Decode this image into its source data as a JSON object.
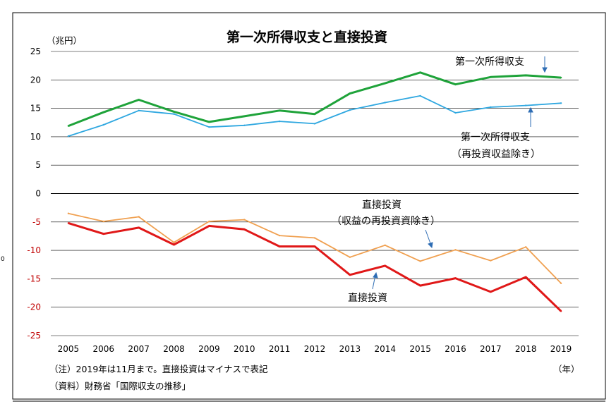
{
  "chart_data": {
    "type": "line",
    "title": "第一次所得収支と直接投資",
    "y_unit": "（兆円）",
    "x_unit": "（年）",
    "ylim": [
      -25,
      25
    ],
    "y_ticks": [
      25,
      20,
      15,
      10,
      5,
      0,
      -5,
      -10,
      -15,
      -20,
      -25
    ],
    "grid": true,
    "x": [
      "2005",
      "2006",
      "2007",
      "2008",
      "2009",
      "2010",
      "2011",
      "2012",
      "2013",
      "2014",
      "2015",
      "2016",
      "2017",
      "2018",
      "2019"
    ],
    "series": [
      {
        "name": "第一次所得収支",
        "color": "#1fa33a",
        "values": [
          11.9,
          14.3,
          16.5,
          14.4,
          12.6,
          13.6,
          14.6,
          14.0,
          17.6,
          19.4,
          21.3,
          19.2,
          20.5,
          20.8,
          20.4
        ]
      },
      {
        "name_lines": [
          "第一次所得収支",
          "（再投資収益除き）"
        ],
        "color": "#2ea7e0",
        "values": [
          10.1,
          12.1,
          14.6,
          14.0,
          11.7,
          12.0,
          12.7,
          12.3,
          14.7,
          16.0,
          17.2,
          14.2,
          15.2,
          15.5,
          15.9
        ]
      },
      {
        "name_lines": [
          "直接投資",
          "（収益の再投資資除き）"
        ],
        "color": "#f0a050",
        "values": [
          -3.5,
          -4.9,
          -4.1,
          -8.6,
          -4.9,
          -4.6,
          -7.4,
          -7.8,
          -11.2,
          -9.1,
          -11.9,
          -9.9,
          -11.8,
          -9.4,
          -15.8
        ]
      },
      {
        "name": "直接投資",
        "color": "#e01818",
        "values": [
          -5.2,
          -7.1,
          -6.0,
          -9.0,
          -5.7,
          -6.3,
          -9.3,
          -9.3,
          -14.3,
          -12.7,
          -16.2,
          -14.9,
          -17.3,
          -14.7,
          -20.7
        ]
      }
    ],
    "notes": [
      "（注）2019年は11月まで。直接投資はマイナスで表記",
      "（資料）財務省「国際収支の推移」"
    ],
    "stray_mark": "0"
  }
}
